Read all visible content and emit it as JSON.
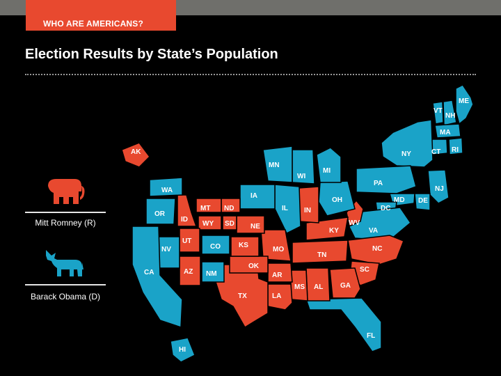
{
  "header": {
    "tag": "WHO ARE AMERICANS?",
    "title": "Election Results by State’s Population"
  },
  "legend": [
    {
      "label": "Mitt Romney (R)",
      "icon": "elephant-icon",
      "color": "#e8492f"
    },
    {
      "label": "Barack Obama (D)",
      "icon": "donkey-icon",
      "color": "#1aa3c8"
    }
  ],
  "colors": {
    "republican": "#e8492f",
    "democrat": "#1aa3c8",
    "background": "#000000"
  },
  "states": [
    {
      "abbr": "ME",
      "party": "D"
    },
    {
      "abbr": "VT",
      "party": "D"
    },
    {
      "abbr": "NH",
      "party": "D"
    },
    {
      "abbr": "MA",
      "party": "D"
    },
    {
      "abbr": "CT",
      "party": "D"
    },
    {
      "abbr": "RI",
      "party": "D"
    },
    {
      "abbr": "NY",
      "party": "D"
    },
    {
      "abbr": "NJ",
      "party": "D"
    },
    {
      "abbr": "PA",
      "party": "D"
    },
    {
      "abbr": "DE",
      "party": "D"
    },
    {
      "abbr": "MD",
      "party": "D"
    },
    {
      "abbr": "DC",
      "party": "D"
    },
    {
      "abbr": "VA",
      "party": "D"
    },
    {
      "abbr": "WV",
      "party": "R"
    },
    {
      "abbr": "NC",
      "party": "R"
    },
    {
      "abbr": "SC",
      "party": "R"
    },
    {
      "abbr": "GA",
      "party": "R"
    },
    {
      "abbr": "FL",
      "party": "D"
    },
    {
      "abbr": "AL",
      "party": "R"
    },
    {
      "abbr": "MS",
      "party": "R"
    },
    {
      "abbr": "TN",
      "party": "R"
    },
    {
      "abbr": "KY",
      "party": "R"
    },
    {
      "abbr": "OH",
      "party": "D"
    },
    {
      "abbr": "MI",
      "party": "D"
    },
    {
      "abbr": "IN",
      "party": "R"
    },
    {
      "abbr": "IL",
      "party": "D"
    },
    {
      "abbr": "WI",
      "party": "D"
    },
    {
      "abbr": "MN",
      "party": "D"
    },
    {
      "abbr": "IA",
      "party": "D"
    },
    {
      "abbr": "MO",
      "party": "R"
    },
    {
      "abbr": "AR",
      "party": "R"
    },
    {
      "abbr": "LA",
      "party": "R"
    },
    {
      "abbr": "TX",
      "party": "R"
    },
    {
      "abbr": "OK",
      "party": "R"
    },
    {
      "abbr": "KS",
      "party": "R"
    },
    {
      "abbr": "NE",
      "party": "R"
    },
    {
      "abbr": "SD",
      "party": "R"
    },
    {
      "abbr": "ND",
      "party": "R"
    },
    {
      "abbr": "MT",
      "party": "R"
    },
    {
      "abbr": "WY",
      "party": "R"
    },
    {
      "abbr": "CO",
      "party": "D"
    },
    {
      "abbr": "NM",
      "party": "D"
    },
    {
      "abbr": "AZ",
      "party": "R"
    },
    {
      "abbr": "UT",
      "party": "R"
    },
    {
      "abbr": "NV",
      "party": "D"
    },
    {
      "abbr": "ID",
      "party": "R"
    },
    {
      "abbr": "WA",
      "party": "D"
    },
    {
      "abbr": "OR",
      "party": "D"
    },
    {
      "abbr": "CA",
      "party": "D"
    },
    {
      "abbr": "AK",
      "party": "R"
    },
    {
      "abbr": "HI",
      "party": "D"
    }
  ]
}
